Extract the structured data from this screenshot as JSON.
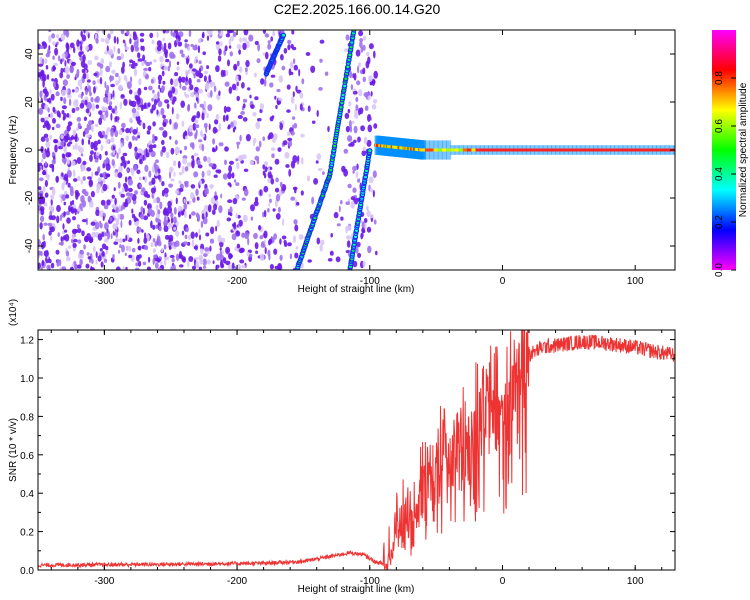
{
  "title": "C2E2.2025.166.00.14.G20",
  "chart_data": [
    {
      "type": "heatmap",
      "xlabel": "Height of straight line (km)",
      "ylabel": "Frequency (Hz)",
      "xlim": [
        -350,
        130
      ],
      "ylim": [
        -50,
        50
      ],
      "x_ticks": [
        -300,
        -200,
        -100,
        0,
        100
      ],
      "y_ticks": [
        -40,
        -20,
        0,
        20,
        40
      ],
      "colorbar": {
        "label": "Normalized spectral amplitude",
        "range": [
          0,
          1
        ],
        "ticks": [
          "0.0",
          "0.2",
          "0.4",
          "0.6",
          "0.8"
        ],
        "colors": [
          "#ff00ff",
          "#0000ff",
          "#00ffff",
          "#00ff00",
          "#ffff00",
          "#ff0000",
          "#ff00ff"
        ]
      },
      "features": [
        {
          "name": "noise region",
          "x_range": [
            -350,
            -95
          ],
          "freq_range": [
            -50,
            50
          ],
          "level": 0.1
        },
        {
          "name": "diagonal track A",
          "points": [
            [
              -178,
              32
            ],
            [
              -165,
              48
            ]
          ],
          "level": 0.3
        },
        {
          "name": "diagonal track B",
          "points": [
            [
              -155,
              -50
            ],
            [
              -130,
              -10
            ],
            [
              -112,
              50
            ]
          ],
          "level": 0.35
        },
        {
          "name": "diagonal track C",
          "points": [
            [
              -115,
              -50
            ],
            [
              -100,
              0
            ]
          ],
          "level": 0.3
        },
        {
          "name": "zero-frequency line",
          "points": [
            [
              -95,
              2
            ],
            [
              -60,
              0
            ],
            [
              130,
              0
            ]
          ],
          "level": 0.9
        }
      ]
    },
    {
      "type": "line",
      "xlabel": "Height of straight line (km)",
      "ylabel": "SNR (10 * v/v)",
      "y_multiplier": "(x10⁴)",
      "xlim": [
        -350,
        130
      ],
      "ylim": [
        0,
        1.25
      ],
      "x_ticks": [
        -300,
        -200,
        -100,
        0,
        100
      ],
      "y_ticks": [
        0.0,
        0.2,
        0.4,
        0.6,
        0.8,
        1.0,
        1.2
      ],
      "color": "#ee3333",
      "series": [
        {
          "x": [
            -350,
            -250,
            -180,
            -150,
            -130,
            -115,
            -105,
            -95,
            -88,
            -80,
            -70,
            -60,
            -50,
            -40,
            -30,
            -20,
            -10,
            0,
            10,
            20,
            30,
            40,
            60,
            80,
            100,
            120,
            130
          ],
          "y": [
            0.025,
            0.03,
            0.035,
            0.045,
            0.07,
            0.09,
            0.08,
            0.04,
            0.03,
            0.2,
            0.3,
            0.45,
            0.55,
            0.65,
            0.75,
            0.82,
            0.9,
            0.95,
            1.05,
            1.12,
            1.16,
            1.17,
            1.19,
            1.18,
            1.16,
            1.13,
            1.12
          ]
        }
      ]
    }
  ]
}
